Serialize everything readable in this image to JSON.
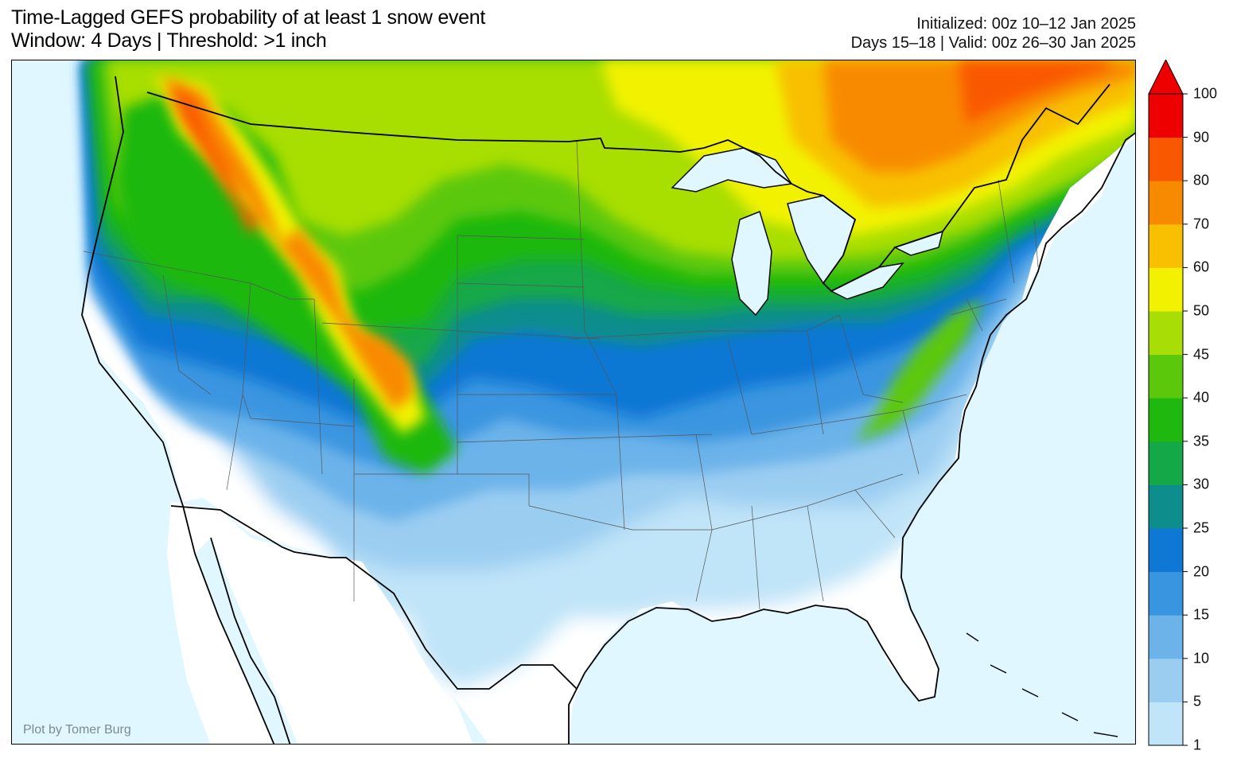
{
  "title": {
    "line1": "Time-Lagged GEFS probability of at least 1 snow event",
    "line2": "Window: 4 Days | Threshold: >1 inch"
  },
  "info": {
    "line1": "Initialized: 00z 10–12 Jan 2025",
    "line2": "Days 15–18 | Valid: 00z 26–30 Jan 2025"
  },
  "credit": "Plot by Tomer Burg",
  "colorbar": {
    "levels": [
      1,
      5,
      10,
      15,
      20,
      25,
      30,
      35,
      40,
      45,
      50,
      60,
      70,
      80,
      90,
      100
    ],
    "labels": [
      "1",
      "5",
      "10",
      "15",
      "20",
      "25",
      "30",
      "35",
      "40",
      "45",
      "50",
      "60",
      "70",
      "80",
      "90",
      "100"
    ],
    "colors": [
      "#c0e4f8",
      "#9bcdf1",
      "#6cb3ea",
      "#3a95e0",
      "#0f77d4",
      "#0e8d8d",
      "#14a848",
      "#1fb80e",
      "#5cc80c",
      "#a8de06",
      "#f2f200",
      "#f8c000",
      "#f88a00",
      "#fa5800",
      "#ee0000"
    ],
    "extend_color": "#ee0000"
  },
  "colors": {
    "ocean": "#e0f7ff",
    "land": "#ffffff"
  }
}
